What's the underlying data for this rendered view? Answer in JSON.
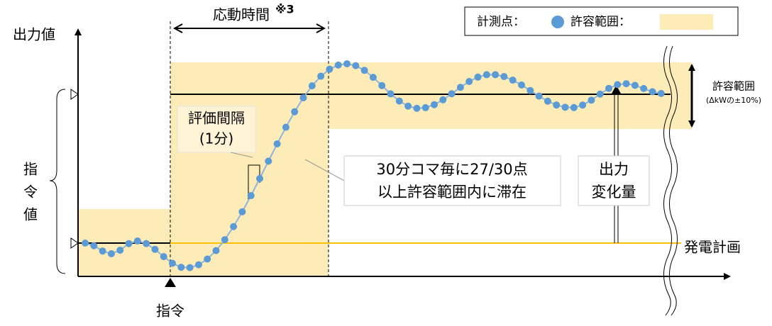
{
  "y_axis_label": "出力値",
  "response_time": {
    "label": "応動時間",
    "note": "※3"
  },
  "legend": {
    "points": "計測点：",
    "range": "許容範囲："
  },
  "tolerance": {
    "label": "許容範囲",
    "detail": "(ΔkWの±10%)"
  },
  "interval": {
    "label": "評価間隔",
    "detail": "(1分)"
  },
  "condition": {
    "line1": "30分コマ毎に27/30点",
    "line2": "以上許容範囲内に滞在"
  },
  "output_change": {
    "line1": "出力",
    "line2": "変化量"
  },
  "command_value": [
    "指",
    "令",
    "値"
  ],
  "plan": "発電計画",
  "command": "指令"
}
